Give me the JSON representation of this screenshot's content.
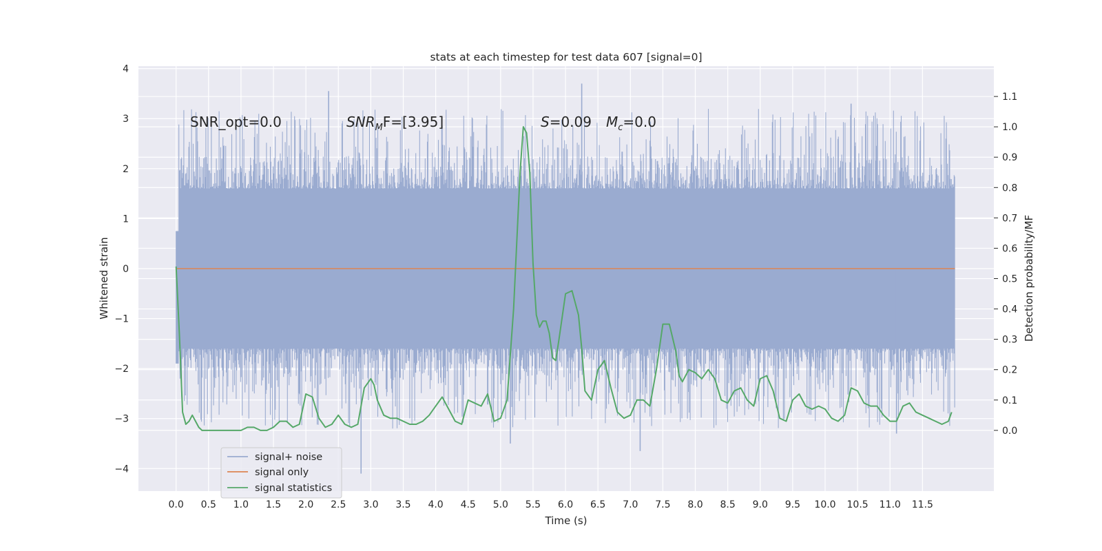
{
  "chart_data": {
    "type": "line",
    "title": "stats at each timestep for test data 607 [signal=0]",
    "xlabel": "Time (s)",
    "ylabel": "Whitened strain",
    "ylabel_right": "Detection probability/MF",
    "xlim": [
      -0.58,
      12.6
    ],
    "ylim": [
      -4.45,
      4.05
    ],
    "ylim_right": [
      -0.2,
      1.2
    ],
    "x_ticks": [
      "0.0",
      "0.5",
      "1.0",
      "1.5",
      "2.0",
      "2.5",
      "3.0",
      "3.5",
      "4.0",
      "4.5",
      "5.0",
      "5.5",
      "6.0",
      "6.5",
      "7.0",
      "7.5",
      "8.0",
      "8.5",
      "9.0",
      "9.5",
      "10.0",
      "10.5",
      "11.0",
      "11.5"
    ],
    "y_ticks": [
      "4",
      "3",
      "2",
      "1",
      "0",
      "−1",
      "−2",
      "−3",
      "−4"
    ],
    "y_ticks_right": [
      "1.1",
      "1.0",
      "0.9",
      "0.8",
      "0.7",
      "0.6",
      "0.5",
      "0.4",
      "0.3",
      "0.2",
      "0.1",
      "0.0"
    ],
    "grid": true,
    "legend_position": "lower-left",
    "annotations": {
      "snr_opt": "SNR_opt=0.0",
      "snr_mf_sym": "SNR",
      "snr_mf_sub": "M",
      "snr_mf_rest": "F=[3.95]",
      "s_sym": "S",
      "s_rest": "=0.09",
      "mc_sym": "M",
      "mc_sub": "c",
      "mc_rest": "=0.0"
    },
    "series": [
      {
        "name": "signal+ noise",
        "axis": "left",
        "color": "#9aabd0",
        "kind": "noise-envelope",
        "x_range": [
          0.0,
          12.0
        ],
        "typical_range": [
          -1.6,
          1.6
        ],
        "extremes": [
          -4.1,
          3.7
        ],
        "peaks": [
          {
            "x": 2.35,
            "y": 3.55
          },
          {
            "x": 6.25,
            "y": 3.7
          },
          {
            "x": 10.4,
            "y": 3.3
          },
          {
            "x": 2.85,
            "y": -4.1
          },
          {
            "x": 7.15,
            "y": -3.65
          },
          {
            "x": 5.15,
            "y": -3.5
          },
          {
            "x": 11.1,
            "y": -3.3
          }
        ]
      },
      {
        "name": "signal only",
        "axis": "left",
        "color": "#dd8452",
        "x": [
          0.0,
          12.0
        ],
        "y": [
          0.0,
          0.0
        ]
      },
      {
        "name": "signal statistics",
        "axis": "right",
        "color": "#55a868",
        "x": [
          0.0,
          0.05,
          0.1,
          0.15,
          0.2,
          0.25,
          0.3,
          0.35,
          0.4,
          0.5,
          0.6,
          0.7,
          0.8,
          0.9,
          1.0,
          1.1,
          1.2,
          1.3,
          1.4,
          1.5,
          1.6,
          1.7,
          1.75,
          1.8,
          1.9,
          2.0,
          2.1,
          2.2,
          2.3,
          2.4,
          2.5,
          2.6,
          2.7,
          2.8,
          2.9,
          3.0,
          3.05,
          3.1,
          3.2,
          3.3,
          3.4,
          3.5,
          3.6,
          3.7,
          3.8,
          3.9,
          4.0,
          4.1,
          4.2,
          4.3,
          4.4,
          4.5,
          4.6,
          4.7,
          4.8,
          4.9,
          5.0,
          5.1,
          5.2,
          5.3,
          5.35,
          5.4,
          5.45,
          5.5,
          5.55,
          5.6,
          5.65,
          5.7,
          5.75,
          5.8,
          5.85,
          5.9,
          6.0,
          6.1,
          6.2,
          6.25,
          6.3,
          6.4,
          6.5,
          6.6,
          6.7,
          6.8,
          6.9,
          7.0,
          7.1,
          7.2,
          7.3,
          7.4,
          7.5,
          7.6,
          7.7,
          7.75,
          7.8,
          7.9,
          8.0,
          8.1,
          8.2,
          8.3,
          8.4,
          8.5,
          8.6,
          8.7,
          8.8,
          8.9,
          9.0,
          9.1,
          9.2,
          9.3,
          9.4,
          9.5,
          9.6,
          9.7,
          9.8,
          9.9,
          10.0,
          10.1,
          10.2,
          10.3,
          10.4,
          10.5,
          10.6,
          10.7,
          10.8,
          10.9,
          11.0,
          11.1,
          11.2,
          11.3,
          11.4,
          11.5,
          11.6,
          11.7,
          11.8,
          11.9,
          11.95
        ],
        "y": [
          0.54,
          0.32,
          0.06,
          0.02,
          0.03,
          0.05,
          0.03,
          0.01,
          0.0,
          0.0,
          0.0,
          0.0,
          0.0,
          0.0,
          0.0,
          0.01,
          0.01,
          0.0,
          0.0,
          0.01,
          0.03,
          0.03,
          0.02,
          0.01,
          0.02,
          0.12,
          0.11,
          0.04,
          0.01,
          0.02,
          0.05,
          0.02,
          0.01,
          0.02,
          0.14,
          0.17,
          0.15,
          0.1,
          0.05,
          0.04,
          0.04,
          0.03,
          0.02,
          0.02,
          0.03,
          0.05,
          0.08,
          0.11,
          0.07,
          0.03,
          0.02,
          0.1,
          0.09,
          0.08,
          0.12,
          0.03,
          0.04,
          0.1,
          0.4,
          0.85,
          1.0,
          0.98,
          0.85,
          0.55,
          0.38,
          0.34,
          0.36,
          0.36,
          0.32,
          0.24,
          0.23,
          0.3,
          0.45,
          0.46,
          0.38,
          0.27,
          0.13,
          0.1,
          0.2,
          0.23,
          0.14,
          0.06,
          0.04,
          0.05,
          0.1,
          0.1,
          0.08,
          0.2,
          0.35,
          0.35,
          0.26,
          0.18,
          0.16,
          0.2,
          0.19,
          0.17,
          0.2,
          0.17,
          0.1,
          0.09,
          0.13,
          0.14,
          0.1,
          0.08,
          0.17,
          0.18,
          0.13,
          0.04,
          0.03,
          0.1,
          0.12,
          0.08,
          0.07,
          0.08,
          0.07,
          0.04,
          0.03,
          0.05,
          0.14,
          0.13,
          0.09,
          0.08,
          0.08,
          0.05,
          0.03,
          0.03,
          0.08,
          0.09,
          0.06,
          0.05,
          0.04,
          0.03,
          0.02,
          0.03,
          0.06
        ]
      }
    ]
  }
}
